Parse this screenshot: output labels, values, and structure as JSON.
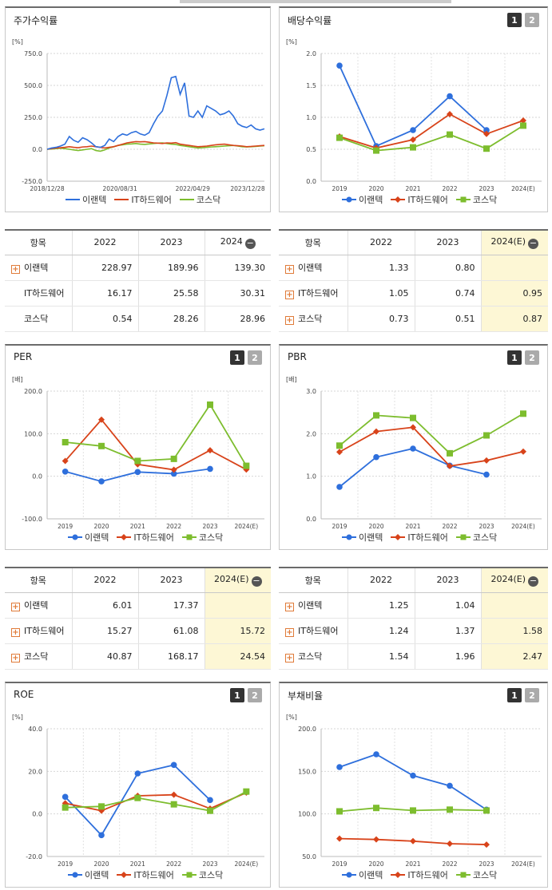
{
  "legend": [
    "이랜텍",
    "IT하드웨어",
    "코스닥"
  ],
  "colors": {
    "이랜텍": "#2e6fdc",
    "IT하드웨어": "#d8431a",
    "코스닥": "#7dbd2e"
  },
  "page_buttons": [
    "1",
    "2"
  ],
  "tables": {
    "stock_return": {
      "header": [
        "항목",
        "2022",
        "2023",
        "2024"
      ],
      "rows": [
        [
          "이랜텍",
          "228.97",
          "189.96",
          "139.30"
        ],
        [
          "IT하드웨어",
          "16.17",
          "25.58",
          "30.31"
        ],
        [
          "코스닥",
          "0.54",
          "28.26",
          "28.96"
        ]
      ]
    },
    "dividend": {
      "header": [
        "항목",
        "2022",
        "2023",
        "2024(E)"
      ],
      "rows": [
        [
          "이랜텍",
          "1.33",
          "0.80",
          ""
        ],
        [
          "IT하드웨어",
          "1.05",
          "0.74",
          "0.95"
        ],
        [
          "코스닥",
          "0.73",
          "0.51",
          "0.87"
        ]
      ]
    },
    "per": {
      "header": [
        "항목",
        "2022",
        "2023",
        "2024(E)"
      ],
      "rows": [
        [
          "이랜텍",
          "6.01",
          "17.37",
          ""
        ],
        [
          "IT하드웨어",
          "15.27",
          "61.08",
          "15.72"
        ],
        [
          "코스닥",
          "40.87",
          "168.17",
          "24.54"
        ]
      ]
    },
    "pbr": {
      "header": [
        "항목",
        "2022",
        "2023",
        "2024(E)"
      ],
      "rows": [
        [
          "이랜텍",
          "1.25",
          "1.04",
          ""
        ],
        [
          "IT하드웨어",
          "1.24",
          "1.37",
          "1.58"
        ],
        [
          "코스닥",
          "1.54",
          "1.96",
          "2.47"
        ]
      ]
    }
  },
  "chart_data": [
    {
      "id": "stock",
      "type": "line",
      "title": "주가수익률",
      "unit": "[%]",
      "ylim": [
        -250,
        750
      ],
      "yticks": [
        "750.0",
        "500.0",
        "250.0",
        "0.0",
        "-250.0"
      ],
      "xticks": [
        "2018/12/28",
        "2020/08/31",
        "2022/04/29",
        "2023/12/28"
      ],
      "series": [
        {
          "name": "이랜텍",
          "values": [
            0,
            10,
            15,
            25,
            40,
            100,
            70,
            55,
            90,
            75,
            50,
            20,
            15,
            30,
            80,
            60,
            100,
            120,
            110,
            130,
            140,
            120,
            110,
            130,
            200,
            260,
            300,
            420,
            560,
            570,
            430,
            520,
            260,
            250,
            300,
            250,
            340,
            320,
            300,
            270,
            280,
            300,
            260,
            200,
            180,
            170,
            190,
            160,
            150,
            160
          ]
        },
        {
          "name": "IT하드웨어",
          "values": [
            0,
            5,
            10,
            12,
            15,
            20,
            15,
            12,
            18,
            20,
            25,
            20,
            15,
            10,
            15,
            20,
            30,
            40,
            50,
            55,
            60,
            58,
            60,
            55,
            50,
            48,
            45,
            50,
            48,
            52,
            40,
            35,
            30,
            25,
            20,
            22,
            25,
            30,
            35,
            38,
            40,
            35,
            30,
            28,
            25,
            20,
            22,
            25,
            28,
            30
          ]
        },
        {
          "name": "코스닥",
          "values": [
            0,
            2,
            5,
            8,
            5,
            0,
            -5,
            -10,
            -5,
            0,
            5,
            -10,
            -15,
            -5,
            10,
            20,
            30,
            35,
            40,
            42,
            45,
            40,
            38,
            42,
            45,
            48,
            50,
            45,
            40,
            38,
            30,
            25,
            20,
            15,
            10,
            12,
            15,
            18,
            20,
            22,
            25,
            28,
            30,
            25,
            20,
            18,
            20,
            22,
            25,
            28
          ]
        }
      ]
    },
    {
      "id": "dividend",
      "type": "line",
      "title": "배당수익률",
      "unit": "[%]",
      "ylim": [
        0,
        2
      ],
      "yticks": [
        "2.0",
        "1.5",
        "1.0",
        "0.5",
        "0.0"
      ],
      "categories": [
        "2019",
        "2020",
        "2021",
        "2022",
        "2023",
        "2024(E)"
      ],
      "series": [
        {
          "name": "이랜텍",
          "values": [
            1.81,
            0.55,
            0.8,
            1.33,
            0.8,
            null
          ]
        },
        {
          "name": "IT하드웨어",
          "values": [
            0.7,
            0.52,
            0.65,
            1.05,
            0.74,
            0.95
          ]
        },
        {
          "name": "코스닥",
          "values": [
            0.68,
            0.48,
            0.53,
            0.73,
            0.51,
            0.87
          ]
        }
      ]
    },
    {
      "id": "per",
      "type": "line",
      "title": "PER",
      "unit": "[배]",
      "ylim": [
        -100,
        200
      ],
      "yticks": [
        "200.0",
        "100.0",
        "0.0",
        "-100.0"
      ],
      "categories": [
        "2019",
        "2020",
        "2021",
        "2022",
        "2023",
        "2024(E)"
      ],
      "series": [
        {
          "name": "이랜텍",
          "values": [
            11,
            -12,
            10,
            6.01,
            17.37,
            null
          ]
        },
        {
          "name": "IT하드웨어",
          "values": [
            36,
            133,
            28,
            15.27,
            61.08,
            15.72
          ]
        },
        {
          "name": "코스닥",
          "values": [
            80,
            71,
            36,
            40.87,
            168.17,
            24.54
          ]
        }
      ]
    },
    {
      "id": "pbr",
      "type": "line",
      "title": "PBR",
      "unit": "[배]",
      "ylim": [
        0,
        3
      ],
      "yticks": [
        "3.0",
        "2.0",
        "1.0",
        "0.0"
      ],
      "categories": [
        "2019",
        "2020",
        "2021",
        "2022",
        "2023",
        "2024(E)"
      ],
      "series": [
        {
          "name": "이랜텍",
          "values": [
            0.75,
            1.45,
            1.65,
            1.25,
            1.04,
            null
          ]
        },
        {
          "name": "IT하드웨어",
          "values": [
            1.57,
            2.05,
            2.15,
            1.24,
            1.37,
            1.58
          ]
        },
        {
          "name": "코스닥",
          "values": [
            1.72,
            2.43,
            2.37,
            1.54,
            1.96,
            2.47
          ]
        }
      ]
    },
    {
      "id": "roe",
      "type": "line",
      "title": "ROE",
      "unit": "[%]",
      "ylim": [
        -20,
        40
      ],
      "yticks": [
        "40.0",
        "20.0",
        "0.0",
        "-20.0"
      ],
      "categories": [
        "2019",
        "2020",
        "2021",
        "2022",
        "2023",
        "2024(E)"
      ],
      "series": [
        {
          "name": "이랜텍",
          "values": [
            8,
            -10,
            19,
            23,
            6.5,
            null
          ]
        },
        {
          "name": "IT하드웨어",
          "values": [
            5,
            1.5,
            8.5,
            9,
            2.5,
            10
          ]
        },
        {
          "name": "코스닥",
          "values": [
            3,
            3.5,
            7.5,
            4.5,
            1.5,
            10.5
          ]
        }
      ]
    },
    {
      "id": "debt",
      "type": "line",
      "title": "부채비율",
      "unit": "[%]",
      "ylim": [
        50,
        200
      ],
      "yticks": [
        "200.0",
        "150.0",
        "100.0",
        "50.0"
      ],
      "categories": [
        "2019",
        "2020",
        "2021",
        "2022",
        "2023",
        "2024(E)"
      ],
      "series": [
        {
          "name": "이랜텍",
          "values": [
            155,
            170,
            145,
            133,
            105,
            null
          ]
        },
        {
          "name": "IT하드웨어",
          "values": [
            71,
            70,
            68,
            65,
            64,
            null
          ]
        },
        {
          "name": "코스닥",
          "values": [
            103,
            107,
            104,
            105,
            104,
            null
          ]
        }
      ]
    }
  ]
}
